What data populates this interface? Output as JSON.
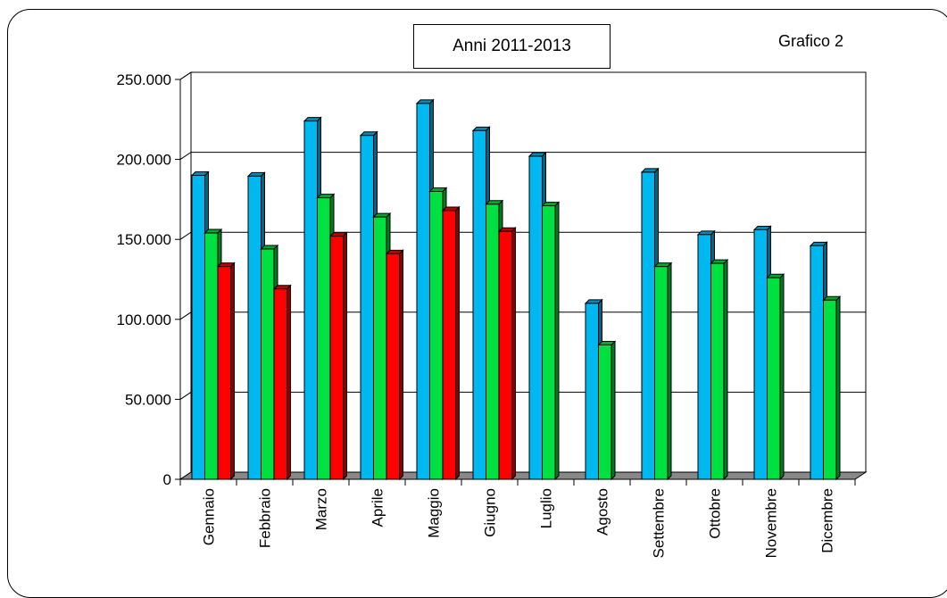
{
  "chart_data": {
    "type": "bar",
    "title": "Anni 2011-2013",
    "label": "Grafico 2",
    "categories": [
      "Gennaio",
      "Febbraio",
      "Marzo",
      "Aprile",
      "Maggio",
      "Giugno",
      "Luglio",
      "Agosto",
      "Settembre",
      "Ottobre",
      "Novembre",
      "Dicembre"
    ],
    "series": [
      {
        "color": "#00b8f0",
        "values": [
          190000,
          189500,
          224000,
          215000,
          235000,
          218000,
          202000,
          110000,
          192000,
          153000,
          156000,
          146000
        ]
      },
      {
        "color": "#00e040",
        "values": [
          154000,
          144000,
          176000,
          164000,
          180000,
          172000,
          171000,
          84000,
          133000,
          135000,
          126000,
          112000
        ]
      },
      {
        "color": "#ff0000",
        "values": [
          133000,
          119000,
          152000,
          141000,
          168000,
          155000,
          null,
          null,
          null,
          null,
          null,
          null
        ]
      }
    ],
    "yticks": [
      "250.000",
      "200.000",
      "150.000",
      "100.000",
      "50.000",
      "0"
    ],
    "ylim": [
      0,
      250000
    ],
    "grid": true,
    "legend": "none"
  }
}
